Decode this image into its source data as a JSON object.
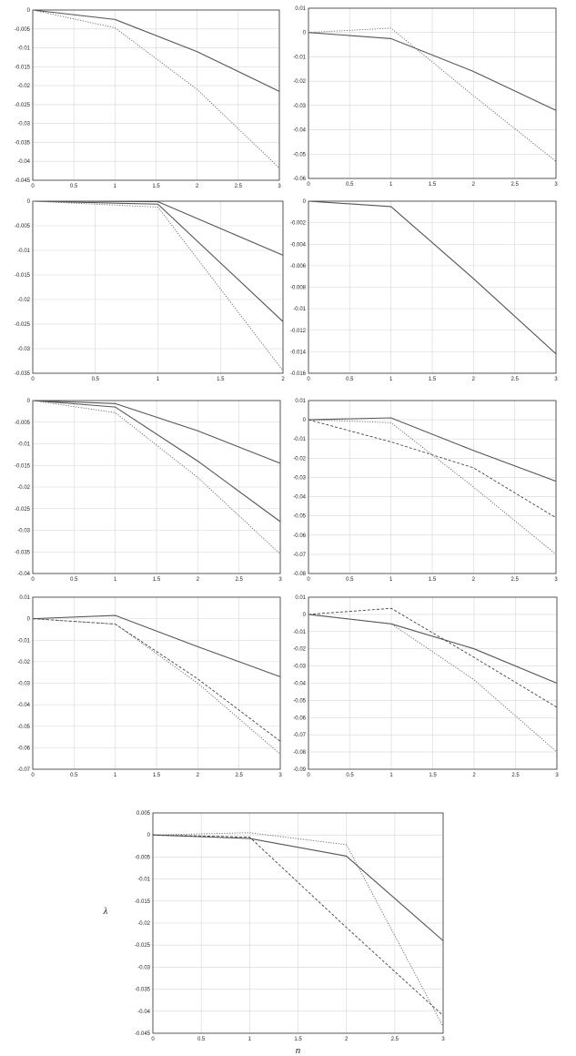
{
  "chart_data": [
    {
      "type": "line",
      "x": [
        0,
        1,
        2,
        3
      ],
      "xlim": [
        0,
        3
      ],
      "ylim": [
        -0.045,
        0
      ],
      "xticks": [
        "0",
        "0.5",
        "1",
        "1.5",
        "2",
        "2.5",
        "3"
      ],
      "yticks": [
        "0",
        "-0.005",
        "-0.01",
        "-0.015",
        "-0.02",
        "-0.025",
        "-0.03",
        "-0.035",
        "-0.04",
        "-0.045"
      ],
      "grid": true,
      "series": [
        {
          "style": "solid",
          "values": [
            0,
            -0.0025,
            -0.011,
            -0.0215
          ]
        },
        {
          "style": "dotted",
          "values": [
            0,
            -0.0047,
            -0.021,
            -0.0418
          ]
        }
      ]
    },
    {
      "type": "line",
      "x": [
        0,
        1,
        2,
        3
      ],
      "xlim": [
        0,
        3
      ],
      "ylim": [
        -0.06,
        0.01
      ],
      "xticks": [
        "0",
        "0.5",
        "1",
        "1.5",
        "2",
        "2.5",
        "3"
      ],
      "yticks": [
        "0.01",
        "0",
        "-0.01",
        "-0.02",
        "-0.03",
        "-0.04",
        "-0.05",
        "-0.06"
      ],
      "grid": true,
      "series": [
        {
          "style": "solid",
          "values": [
            0,
            -0.0025,
            -0.016,
            -0.032
          ]
        },
        {
          "style": "dotted",
          "values": [
            0,
            0.0018,
            -0.026,
            -0.053
          ]
        }
      ]
    },
    {
      "type": "line",
      "x": [
        0,
        1,
        2
      ],
      "xlim": [
        0,
        2
      ],
      "ylim": [
        -0.035,
        0
      ],
      "xticks": [
        "0",
        "0.5",
        "1",
        "1.5",
        "2"
      ],
      "yticks": [
        "0",
        "-0.005",
        "-0.01",
        "-0.015",
        "-0.02",
        "-0.025",
        "-0.03",
        "-0.035"
      ],
      "grid": true,
      "series": [
        {
          "style": "solid",
          "values": [
            0,
            -0.0001,
            -0.011
          ]
        },
        {
          "style": "solid",
          "values": [
            0,
            -0.0006,
            -0.0245
          ]
        },
        {
          "style": "dotted",
          "values": [
            0,
            -0.0012,
            -0.0345
          ]
        }
      ]
    },
    {
      "type": "line",
      "x": [
        0,
        1,
        2,
        3
      ],
      "xlim": [
        0,
        3
      ],
      "ylim": [
        -0.016,
        0
      ],
      "xticks": [
        "0",
        "0.5",
        "1",
        "1.5",
        "2",
        "2.5",
        "3"
      ],
      "yticks": [
        "0",
        "-0.002",
        "-0.004",
        "-0.006",
        "-0.008",
        "-0.01",
        "-0.012",
        "-0.014",
        "-0.016"
      ],
      "grid": true,
      "series": [
        {
          "style": "solid",
          "values": [
            0,
            -0.0005,
            -0.0072,
            -0.0142
          ]
        }
      ]
    },
    {
      "type": "line",
      "x": [
        0,
        1,
        2,
        3
      ],
      "xlim": [
        0,
        3
      ],
      "ylim": [
        -0.04,
        0
      ],
      "xticks": [
        "0",
        "0.5",
        "1",
        "1.5",
        "2",
        "2.5",
        "3"
      ],
      "yticks": [
        "0",
        "-0.005",
        "-0.01",
        "-0.015",
        "-0.02",
        "-0.025",
        "-0.03",
        "-0.035",
        "-0.04"
      ],
      "grid": true,
      "series": [
        {
          "style": "solid",
          "values": [
            0,
            -0.0007,
            -0.007,
            -0.0145
          ]
        },
        {
          "style": "solid",
          "values": [
            0,
            -0.0015,
            -0.014,
            -0.028
          ]
        },
        {
          "style": "dotted",
          "values": [
            0,
            -0.0028,
            -0.0178,
            -0.0355
          ]
        }
      ]
    },
    {
      "type": "line",
      "x": [
        0,
        1,
        2,
        3
      ],
      "xlim": [
        0,
        3
      ],
      "ylim": [
        -0.08,
        0.01
      ],
      "xticks": [
        "0",
        "0.5",
        "1",
        "1.5",
        "2",
        "2.5",
        "3"
      ],
      "yticks": [
        "0.01",
        "0",
        "-0.01",
        "-0.02",
        "-0.03",
        "-0.04",
        "-0.05",
        "-0.06",
        "-0.07",
        "-0.08"
      ],
      "grid": true,
      "series": [
        {
          "style": "solid",
          "values": [
            0,
            0.001,
            -0.016,
            -0.032
          ]
        },
        {
          "style": "dashed",
          "values": [
            0,
            -0.0115,
            -0.025,
            -0.051
          ]
        },
        {
          "style": "dotted",
          "values": [
            0,
            -0.0015,
            -0.035,
            -0.07
          ]
        }
      ]
    },
    {
      "type": "line",
      "x": [
        0,
        1,
        2,
        3
      ],
      "xlim": [
        0,
        3
      ],
      "ylim": [
        -0.07,
        0.01
      ],
      "xticks": [
        "0",
        "0.5",
        "1",
        "1.5",
        "2",
        "2.5",
        "3"
      ],
      "yticks": [
        "0.01",
        "0",
        "-0.01",
        "-0.02",
        "-0.03",
        "-0.04",
        "-0.05",
        "-0.06",
        "-0.07"
      ],
      "grid": true,
      "series": [
        {
          "style": "solid",
          "values": [
            0,
            0.0015,
            -0.013,
            -0.027
          ]
        },
        {
          "style": "dashed",
          "values": [
            0,
            -0.0025,
            -0.028,
            -0.057
          ]
        },
        {
          "style": "dotted",
          "values": [
            0,
            -0.0025,
            -0.03,
            -0.063
          ]
        }
      ]
    },
    {
      "type": "line",
      "x": [
        0,
        1,
        2,
        3
      ],
      "xlim": [
        0,
        3
      ],
      "ylim": [
        -0.09,
        0.01
      ],
      "xticks": [
        "0",
        "0.5",
        "1",
        "1.5",
        "2",
        "2.5",
        "3"
      ],
      "yticks": [
        "0.01",
        "0",
        "-0.01",
        "-0.02",
        "-0.03",
        "-0.04",
        "-0.05",
        "-0.06",
        "-0.07",
        "-0.08",
        "-0.09"
      ],
      "grid": true,
      "series": [
        {
          "style": "solid",
          "values": [
            0,
            -0.0055,
            -0.02,
            -0.04
          ]
        },
        {
          "style": "dashed",
          "values": [
            0,
            0.0035,
            -0.025,
            -0.054
          ]
        },
        {
          "style": "dotted",
          "values": [
            0,
            -0.0055,
            -0.038,
            -0.08
          ]
        }
      ]
    },
    {
      "type": "line",
      "x": [
        0,
        1,
        2,
        3
      ],
      "xlim": [
        0,
        3
      ],
      "ylim": [
        -0.045,
        0.005
      ],
      "xticks": [
        "0",
        "0.5",
        "1",
        "1.5",
        "2",
        "2.5",
        "3"
      ],
      "yticks": [
        "0.005",
        "0",
        "-0.005",
        "-0.01",
        "-0.015",
        "-0.02",
        "-0.025",
        "-0.03",
        "-0.035",
        "-0.04",
        "-0.045"
      ],
      "xlabel": "n",
      "ylabel": "λ",
      "grid": true,
      "series": [
        {
          "style": "solid",
          "values": [
            0,
            -0.0008,
            -0.0048,
            -0.024
          ]
        },
        {
          "style": "dotted",
          "values": [
            0,
            0.0005,
            -0.0022,
            -0.0435
          ]
        },
        {
          "style": "dashed",
          "values": [
            0,
            -0.0005,
            -0.021,
            -0.041
          ]
        }
      ]
    }
  ]
}
